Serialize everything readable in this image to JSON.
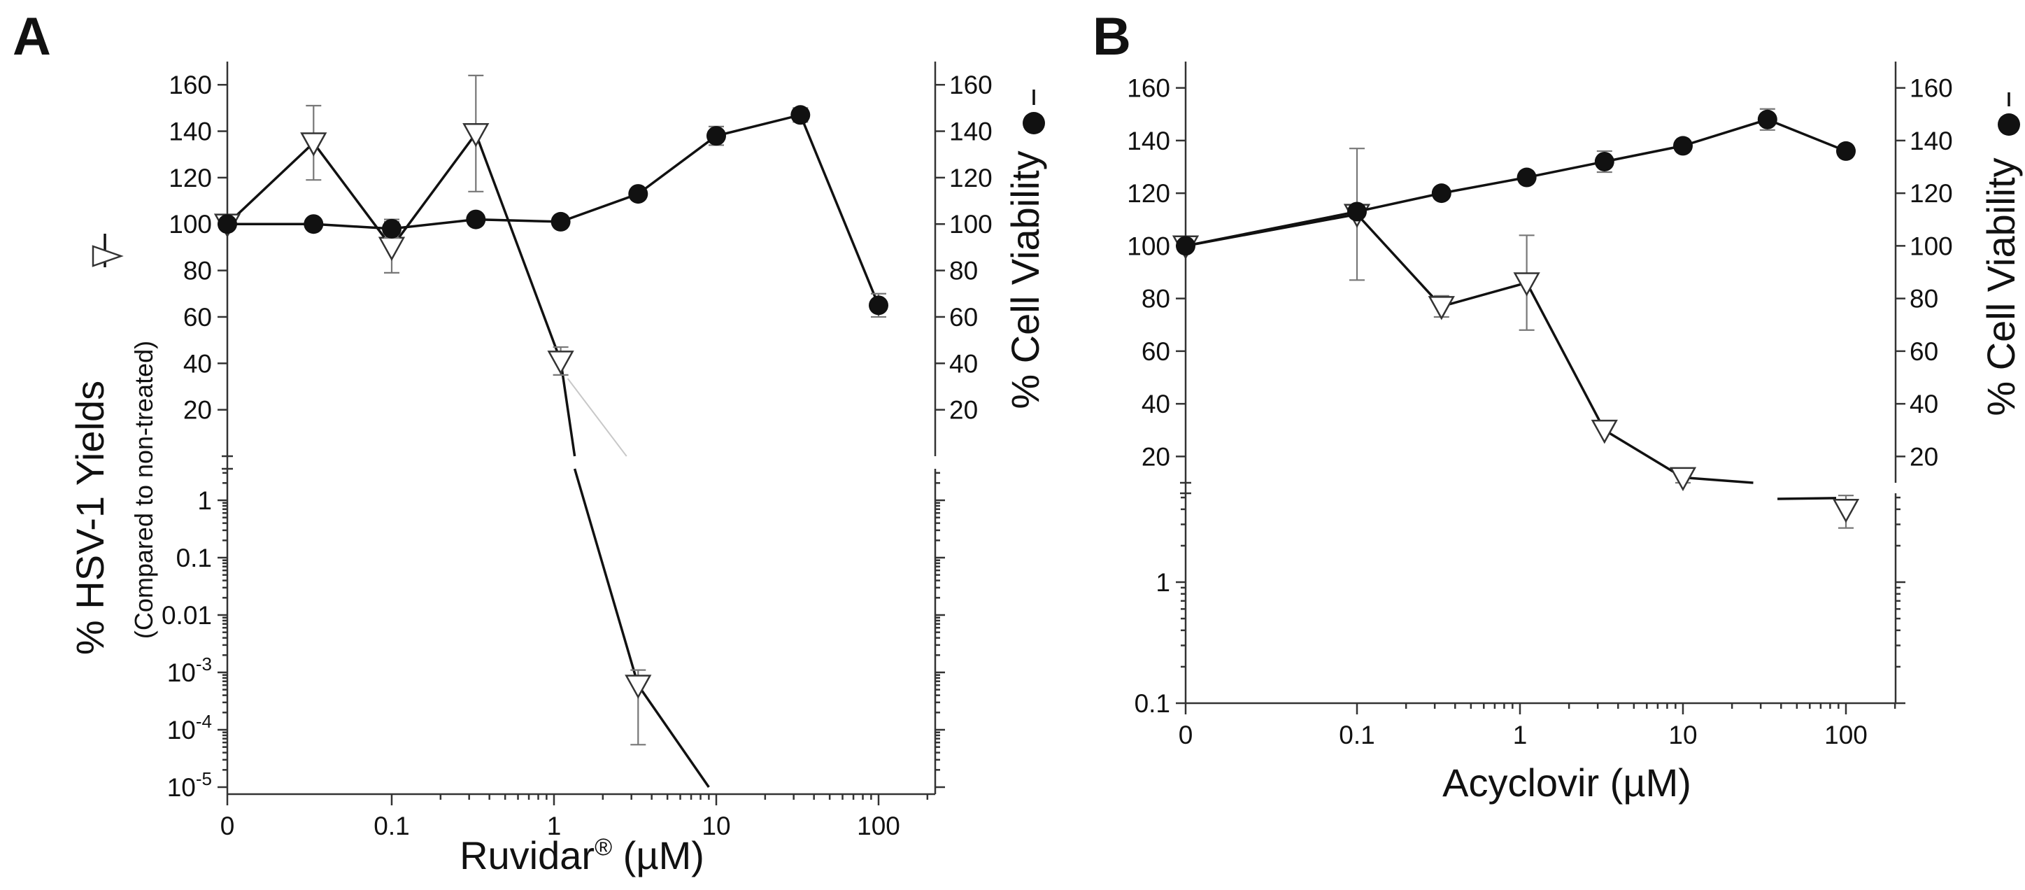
{
  "figure": {
    "panels": [
      "A",
      "B"
    ]
  },
  "chart_data": [
    {
      "panel": "A",
      "type": "line",
      "xlabel": "Ruvidar",
      "xlabel_superscript": "®",
      "xlabel_unit": " (µM)",
      "ylabel_left": "% HSV-1 Yields",
      "ylabel_left_sub": "(Compared to non-treated)",
      "ylabel_right": "% Cell Viability",
      "x_scale": "log with zero",
      "x_ticks": [
        "0",
        "0.1",
        "1",
        "10",
        "100"
      ],
      "y_upper_range": [
        0,
        170
      ],
      "y_upper_ticks_left": [
        "20",
        "40",
        "60",
        "80",
        "100",
        "120",
        "140",
        "160"
      ],
      "y_upper_ticks_right": [
        "20",
        "40",
        "60",
        "80",
        "100",
        "120",
        "140",
        "160"
      ],
      "y_lower_scale": "log",
      "y_lower_ticks": [
        "1",
        "0.1",
        "0.01",
        "10-3",
        "10-4",
        "10-5"
      ],
      "series": [
        {
          "name": "% HSV-1 Yields",
          "marker": "open-triangle-down",
          "points": [
            {
              "x": 0,
              "y": 100,
              "err": 0
            },
            {
              "x": 0.033,
              "y": 135,
              "err": 16
            },
            {
              "x": 0.1,
              "y": 90,
              "err": 11
            },
            {
              "x": 0.33,
              "y": 139,
              "err": 25
            },
            {
              "x": 1.1,
              "y": 41,
              "err": 6
            },
            {
              "x": 3.3,
              "y": 0.0006,
              "err_low": 5.5e-05,
              "err_high": 0.0011
            }
          ],
          "extrapolated_end": {
            "x": 9,
            "y": 1e-05
          }
        },
        {
          "name": "% Cell Viability",
          "marker": "filled-circle",
          "points": [
            {
              "x": 0,
              "y": 100,
              "err": 0
            },
            {
              "x": 0.033,
              "y": 100,
              "err": 0
            },
            {
              "x": 0.1,
              "y": 98,
              "err": 4
            },
            {
              "x": 0.33,
              "y": 102,
              "err": 0
            },
            {
              "x": 1.1,
              "y": 101,
              "err": 0
            },
            {
              "x": 3.3,
              "y": 113,
              "err": 0
            },
            {
              "x": 10,
              "y": 138,
              "err": 4
            },
            {
              "x": 33,
              "y": 147,
              "err": 3
            },
            {
              "x": 100,
              "y": 65,
              "err": 5
            }
          ]
        }
      ]
    },
    {
      "panel": "B",
      "type": "line",
      "xlabel": "Acyclovir",
      "xlabel_unit": " (µM)",
      "ylabel_right": "% Cell Viability",
      "x_scale": "log with zero",
      "x_ticks": [
        "0",
        "0.1",
        "1",
        "10",
        "100"
      ],
      "y_upper_range": [
        10,
        170
      ],
      "y_upper_ticks_left": [
        "20",
        "40",
        "60",
        "80",
        "100",
        "120",
        "140",
        "160"
      ],
      "y_upper_ticks_right": [
        "20",
        "40",
        "60",
        "80",
        "100",
        "120",
        "140",
        "160"
      ],
      "y_lower_scale": "log",
      "y_lower_ticks": [
        "1",
        "0.1"
      ],
      "series": [
        {
          "name": "% HSV-1 Yields",
          "marker": "open-triangle-down",
          "points": [
            {
              "x": 0,
              "y": 100,
              "err": 0
            },
            {
              "x": 0.1,
              "y": 112,
              "err": 25
            },
            {
              "x": 0.33,
              "y": 77,
              "err": 4
            },
            {
              "x": 1.1,
              "y": 86,
              "err": 18
            },
            {
              "x": 3.3,
              "y": 30,
              "err": 0
            },
            {
              "x": 10,
              "y": 12,
              "err": 2
            },
            {
              "x": 100,
              "y": 4,
              "err_low": 2.8,
              "err_high": 5.2
            }
          ]
        },
        {
          "name": "% Cell Viability",
          "marker": "filled-circle",
          "points": [
            {
              "x": 0,
              "y": 100,
              "err": 0
            },
            {
              "x": 0.1,
              "y": 113,
              "err": 0
            },
            {
              "x": 0.33,
              "y": 120,
              "err": 0
            },
            {
              "x": 1.1,
              "y": 126,
              "err": 0
            },
            {
              "x": 3.3,
              "y": 132,
              "err": 4
            },
            {
              "x": 10,
              "y": 138,
              "err": 0
            },
            {
              "x": 33,
              "y": 148,
              "err": 4
            },
            {
              "x": 100,
              "y": 136,
              "err": 0
            }
          ]
        }
      ]
    }
  ]
}
